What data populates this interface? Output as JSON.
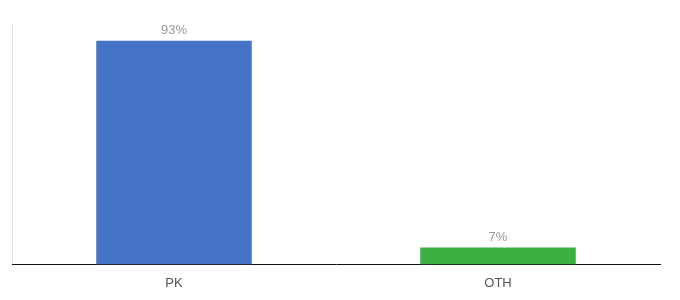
{
  "chart_data": {
    "type": "bar",
    "categories": [
      "PK",
      "OTH"
    ],
    "values": [
      93,
      7
    ],
    "value_labels": [
      "93%",
      "7%"
    ],
    "colors": [
      "#4472c4",
      "#3cb043"
    ],
    "ylim": [
      0,
      100
    ],
    "grid": false,
    "data_labels": true,
    "tick_labels": "x"
  }
}
